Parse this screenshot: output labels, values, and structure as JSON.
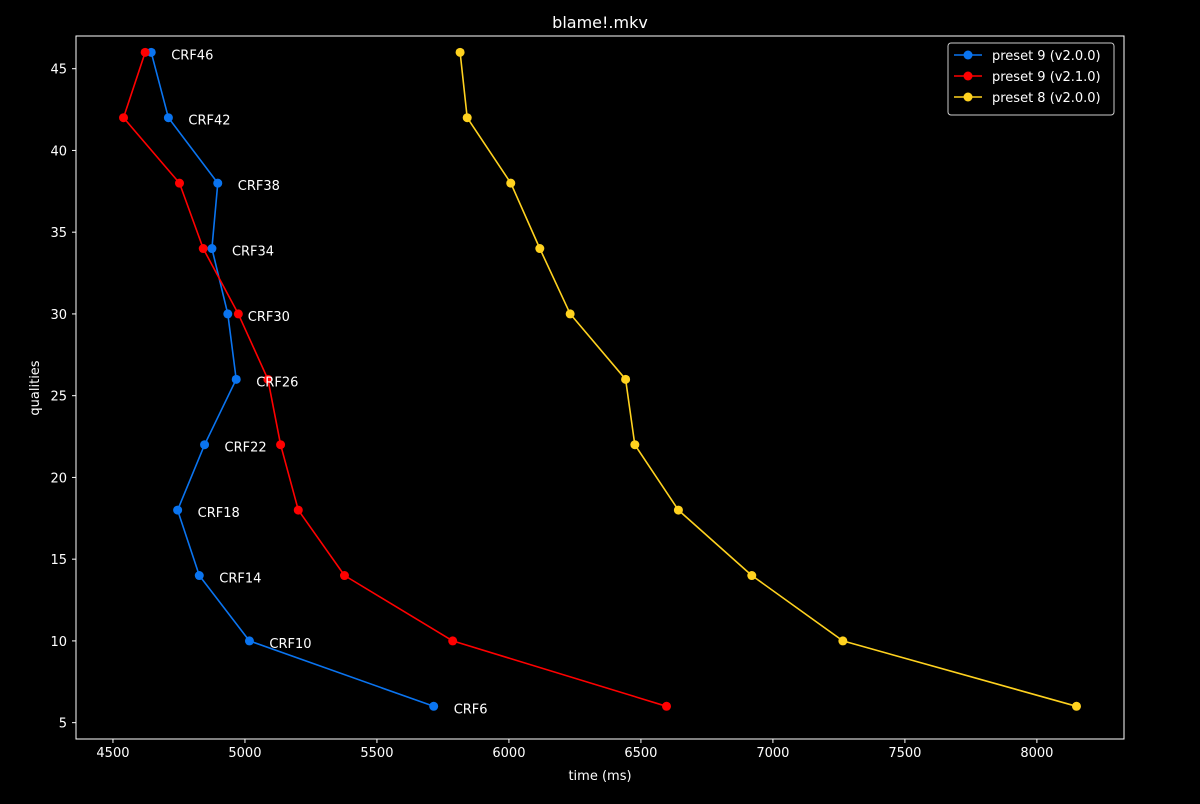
{
  "chart_data": {
    "type": "line",
    "title": "blame!.mkv",
    "xlabel": "time (ms)",
    "ylabel": "qualities",
    "xlim": [
      4360,
      8330
    ],
    "ylim": [
      4,
      47
    ],
    "xticks": [
      4500,
      5000,
      5500,
      6000,
      6500,
      7000,
      7500,
      8000
    ],
    "yticks": [
      5,
      10,
      15,
      20,
      25,
      30,
      35,
      40,
      45
    ],
    "xtick_labels": [
      "4500",
      "5000",
      "5500",
      "6000",
      "6500",
      "7000",
      "7500",
      "8000"
    ],
    "ytick_labels": [
      "5",
      "10",
      "15",
      "20",
      "25",
      "30",
      "35",
      "40",
      "45"
    ],
    "grid": false,
    "legend_position": "top-right",
    "background": "#000000",
    "foreground": "#ffffff",
    "series": [
      {
        "name": "preset 9 (v2.0.0)",
        "color": "#0a74f0",
        "x": [
          4645,
          4710,
          4897,
          4875,
          4935,
          4967,
          4847,
          4745,
          4827,
          5017,
          5715
        ],
        "y": [
          46,
          42,
          38,
          34,
          30,
          26,
          22,
          18,
          14,
          10,
          6
        ]
      },
      {
        "name": "preset 9 (v2.1.0)",
        "color": "#ff0000",
        "x": [
          4622,
          4540,
          4752,
          4842,
          4975,
          5087,
          5135,
          5202,
          5377,
          5787,
          6597
        ],
        "y": [
          46,
          42,
          38,
          34,
          30,
          26,
          22,
          18,
          14,
          10,
          6
        ]
      },
      {
        "name": "preset 8 (v2.0.0)",
        "color": "#ffd21f",
        "x": [
          5815,
          5842,
          6007,
          6117,
          6232,
          6442,
          6477,
          6642,
          6920,
          7265,
          8150
        ],
        "y": [
          46,
          42,
          38,
          34,
          30,
          26,
          22,
          18,
          14,
          10,
          6
        ]
      }
    ],
    "annotations": [
      {
        "text": "CRF46",
        "x": 4645,
        "y": 46
      },
      {
        "text": "CRF42",
        "x": 4710,
        "y": 42
      },
      {
        "text": "CRF38",
        "x": 4897,
        "y": 38
      },
      {
        "text": "CRF34",
        "x": 4875,
        "y": 34
      },
      {
        "text": "CRF30",
        "x": 4935,
        "y": 30
      },
      {
        "text": "CRF26",
        "x": 4967,
        "y": 26
      },
      {
        "text": "CRF22",
        "x": 4847,
        "y": 22
      },
      {
        "text": "CRF18",
        "x": 4745,
        "y": 18
      },
      {
        "text": "CRF14",
        "x": 4827,
        "y": 14
      },
      {
        "text": "CRF10",
        "x": 5017,
        "y": 10
      },
      {
        "text": "CRF6",
        "x": 5715,
        "y": 6
      }
    ]
  }
}
